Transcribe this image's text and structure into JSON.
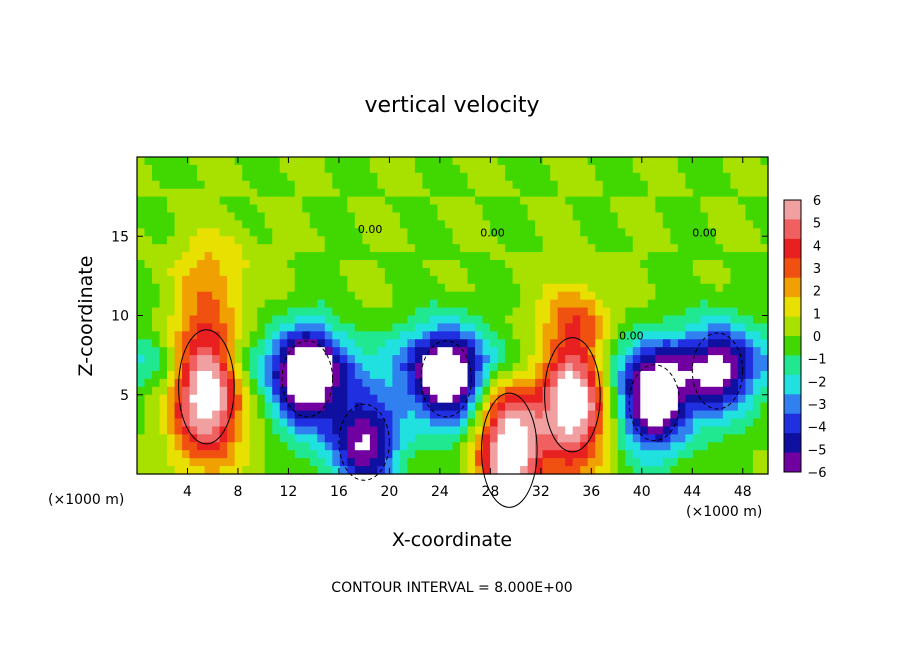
{
  "chart_data": {
    "type": "heatmap",
    "title": "vertical velocity",
    "xlabel": "X-coordinate",
    "ylabel": "Z-coordinate",
    "x_unit": "(×1000 m)",
    "footer": "CONTOUR INTERVAL = 8.000E+00",
    "xlim": [
      0,
      50
    ],
    "ylim": [
      0,
      20
    ],
    "x_ticks": [
      4,
      8,
      12,
      16,
      20,
      24,
      28,
      32,
      36,
      40,
      44,
      48
    ],
    "y_ticks": [
      5,
      10,
      15
    ],
    "colorbar": {
      "ticks": [
        6,
        5,
        4,
        3,
        2,
        1,
        0,
        -1,
        -2,
        -3,
        -4,
        -5,
        -6
      ],
      "range": [
        -6,
        6
      ],
      "colors": [
        "#f0a0a0",
        "#f06060",
        "#e82020",
        "#f05010",
        "#f0a000",
        "#e8e000",
        "#a8e000",
        "#40d800",
        "#20e890",
        "#20e0e0",
        "#3080f0",
        "#2030e0",
        "#1010a0",
        "#7000a0"
      ]
    },
    "contour_labels": [
      "0.00",
      "0.00",
      "0.00",
      "0.00"
    ],
    "features": [
      {
        "name": "updraft",
        "x": 5.5,
        "z": 5.5,
        "peak": 8
      },
      {
        "name": "downdraft",
        "x": 13.5,
        "z": 6.0,
        "peak": -7
      },
      {
        "name": "downdraft",
        "x": 18.0,
        "z": 2.0,
        "peak": -6
      },
      {
        "name": "downdraft",
        "x": 24.5,
        "z": 6.0,
        "peak": -7
      },
      {
        "name": "updraft",
        "x": 29.5,
        "z": 1.5,
        "peak": 7
      },
      {
        "name": "updraft",
        "x": 34.5,
        "z": 5.0,
        "peak": 8
      },
      {
        "name": "downdraft",
        "x": 41.0,
        "z": 4.5,
        "peak": -7
      },
      {
        "name": "downdraft",
        "x": 46.0,
        "z": 6.5,
        "peak": -5
      }
    ]
  }
}
